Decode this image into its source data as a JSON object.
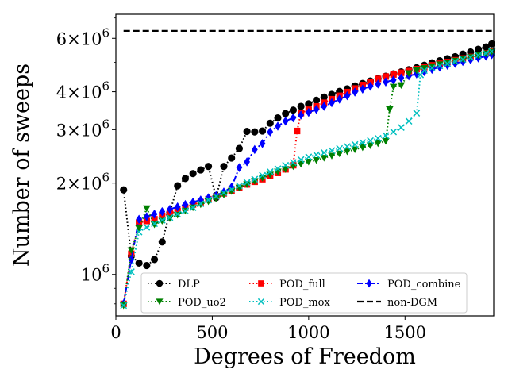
{
  "chart_data": {
    "type": "line",
    "xlabel": "Degrees of Freedom",
    "ylabel": "Number of sweeps",
    "xlim": [
      0,
      1960
    ],
    "ylim": [
      730000,
      7200000
    ],
    "yscale": "log",
    "xticks": [
      0,
      500,
      1000,
      1500
    ],
    "xtick_labels": [
      "0",
      "500",
      "1000",
      "1500"
    ],
    "yticks": [
      {
        "value": 1000000,
        "base": "10",
        "exp": "6",
        "coef": ""
      },
      {
        "value": 2000000,
        "base": "10",
        "exp": "6",
        "coef": "2"
      },
      {
        "value": 3000000,
        "base": "10",
        "exp": "6",
        "coef": "3"
      },
      {
        "value": 4000000,
        "base": "10",
        "exp": "6",
        "coef": "4"
      },
      {
        "value": 6000000,
        "base": "10",
        "exp": "6",
        "coef": "6"
      }
    ],
    "times_sign": "×",
    "grid": false,
    "legend_placement": "lower-right",
    "series": [
      {
        "name": "DLP",
        "color": "#000000",
        "marker": "circle",
        "linestyle": "dotted",
        "x": [
          40,
          80,
          120,
          160,
          200,
          240,
          280,
          320,
          360,
          400,
          440,
          480,
          520,
          560,
          600,
          640,
          680,
          720,
          760,
          800,
          840,
          880,
          920,
          960,
          1000,
          1040,
          1080,
          1120,
          1160,
          1200,
          1240,
          1280,
          1320,
          1360,
          1400,
          1440,
          1480,
          1520,
          1560,
          1600,
          1640,
          1680,
          1720,
          1760,
          1800,
          1840,
          1880,
          1920,
          1950
        ],
        "y": [
          1900000,
          1150000,
          1090000,
          1070000,
          1120000,
          1280000,
          1600000,
          1960000,
          2070000,
          2150000,
          2210000,
          2270000,
          1790000,
          2270000,
          2420000,
          2600000,
          2960000,
          2950000,
          2970000,
          3150000,
          3280000,
          3390000,
          3480000,
          3580000,
          3650000,
          3750000,
          3840000,
          3920000,
          4010000,
          4090000,
          4180000,
          4260000,
          4340000,
          4420000,
          4500000,
          4580000,
          4650000,
          4730000,
          4800000,
          4890000,
          4980000,
          5060000,
          5140000,
          5220000,
          5320000,
          5410000,
          5520000,
          5620000,
          5750000
        ]
      },
      {
        "name": "POD_full",
        "color": "#ff0000",
        "marker": "square",
        "linestyle": "dotted",
        "x": [
          40,
          80,
          120,
          160,
          200,
          240,
          280,
          320,
          360,
          400,
          440,
          480,
          520,
          560,
          600,
          640,
          680,
          720,
          760,
          800,
          840,
          880,
          920,
          940,
          960,
          1000,
          1040,
          1080,
          1120,
          1160,
          1200,
          1240,
          1280,
          1320,
          1360,
          1400,
          1440,
          1480,
          1520,
          1560,
          1600,
          1640,
          1680,
          1720,
          1760,
          1800,
          1840,
          1880,
          1920,
          1950
        ],
        "y": [
          800000,
          1170000,
          1480000,
          1500000,
          1520000,
          1560000,
          1590000,
          1620000,
          1660000,
          1700000,
          1730000,
          1770000,
          1810000,
          1850000,
          1890000,
          1930000,
          1980000,
          2020000,
          2060000,
          2110000,
          2160000,
          2220000,
          2290000,
          2970000,
          3400000,
          3490000,
          3580000,
          3680000,
          3780000,
          3880000,
          3990000,
          4100000,
          4210000,
          4310000,
          4410000,
          4490000,
          4560000,
          4620000,
          4680000,
          4750000,
          4820000,
          4890000,
          4950000,
          5010000,
          5080000,
          5150000,
          5210000,
          5280000,
          5350000,
          5420000
        ]
      },
      {
        "name": "POD_combine",
        "color": "#0000ff",
        "marker": "diamond",
        "linestyle": "dashdot",
        "x": [
          40,
          80,
          120,
          160,
          200,
          240,
          280,
          320,
          360,
          400,
          440,
          480,
          520,
          560,
          600,
          640,
          680,
          720,
          760,
          800,
          840,
          880,
          920,
          960,
          1000,
          1040,
          1080,
          1120,
          1160,
          1200,
          1240,
          1280,
          1320,
          1360,
          1400,
          1440,
          1480,
          1520,
          1560,
          1600,
          1640,
          1680,
          1720,
          1760,
          1800,
          1840,
          1880,
          1920,
          1950
        ],
        "y": [
          800000,
          1120000,
          1520000,
          1550000,
          1580000,
          1610000,
          1640000,
          1670000,
          1700000,
          1730000,
          1760000,
          1790000,
          1820000,
          1870000,
          1940000,
          2250000,
          2350000,
          2580000,
          2700000,
          2950000,
          3080000,
          3200000,
          3280000,
          3350000,
          3420000,
          3500000,
          3580000,
          3680000,
          3780000,
          3880000,
          3990000,
          4080000,
          4170000,
          4240000,
          4310000,
          4370000,
          4440000,
          4510000,
          4580000,
          4660000,
          4740000,
          4820000,
          4890000,
          4960000,
          5030000,
          5100000,
          5170000,
          5240000,
          5300000
        ]
      },
      {
        "name": "POD_uo2",
        "color": "#008000",
        "marker": "triangle-down",
        "linestyle": "dotted",
        "x": [
          40,
          80,
          120,
          160,
          200,
          240,
          280,
          320,
          360,
          400,
          440,
          480,
          520,
          560,
          600,
          640,
          680,
          720,
          760,
          800,
          840,
          880,
          920,
          960,
          1000,
          1040,
          1080,
          1120,
          1160,
          1200,
          1240,
          1280,
          1320,
          1360,
          1400,
          1420,
          1440,
          1480,
          1520,
          1560,
          1600,
          1640,
          1680,
          1720,
          1760,
          1800,
          1840,
          1880,
          1920,
          1950
        ],
        "y": [
          790000,
          1200000,
          1420000,
          1650000,
          1460000,
          1500000,
          1530000,
          1570000,
          1620000,
          1660000,
          1700000,
          1740000,
          1780000,
          1830000,
          1880000,
          1930000,
          1980000,
          2030000,
          2080000,
          2130000,
          2180000,
          2220000,
          2270000,
          2310000,
          2350000,
          2380000,
          2420000,
          2460000,
          2500000,
          2540000,
          2580000,
          2620000,
          2660000,
          2700000,
          2750000,
          3500000,
          4150000,
          4200000,
          4600000,
          4700000,
          4780000,
          4850000,
          4920000,
          4990000,
          5060000,
          5130000,
          5200000,
          5270000,
          5340000,
          5410000
        ]
      },
      {
        "name": "POD_mox",
        "color": "#00bfbf",
        "marker": "x",
        "linestyle": "dotted",
        "x": [
          40,
          80,
          120,
          160,
          200,
          240,
          280,
          320,
          360,
          400,
          440,
          480,
          520,
          560,
          600,
          640,
          680,
          720,
          760,
          800,
          840,
          880,
          920,
          960,
          1000,
          1040,
          1080,
          1120,
          1160,
          1200,
          1240,
          1280,
          1320,
          1360,
          1400,
          1440,
          1480,
          1520,
          1560,
          1580,
          1600,
          1640,
          1680,
          1720,
          1760,
          1800,
          1840,
          1880,
          1920,
          1950
        ],
        "y": [
          790000,
          1020000,
          1380000,
          1430000,
          1470000,
          1510000,
          1540000,
          1580000,
          1620000,
          1660000,
          1710000,
          1760000,
          1810000,
          1860000,
          1910000,
          1960000,
          2010000,
          2060000,
          2120000,
          2180000,
          2230000,
          2290000,
          2340000,
          2390000,
          2440000,
          2480000,
          2520000,
          2560000,
          2600000,
          2640000,
          2680000,
          2720000,
          2760000,
          2810000,
          2870000,
          2950000,
          3050000,
          3200000,
          3400000,
          4550000,
          4700000,
          4790000,
          4870000,
          4950000,
          5030000,
          5110000,
          5190000,
          5270000,
          5350000,
          5430000
        ]
      },
      {
        "name": "non-DGM",
        "color": "#000000",
        "marker": "none",
        "linestyle": "dashed",
        "x": [
          40,
          1950
        ],
        "y": [
          6350000,
          6350000
        ]
      }
    ]
  }
}
